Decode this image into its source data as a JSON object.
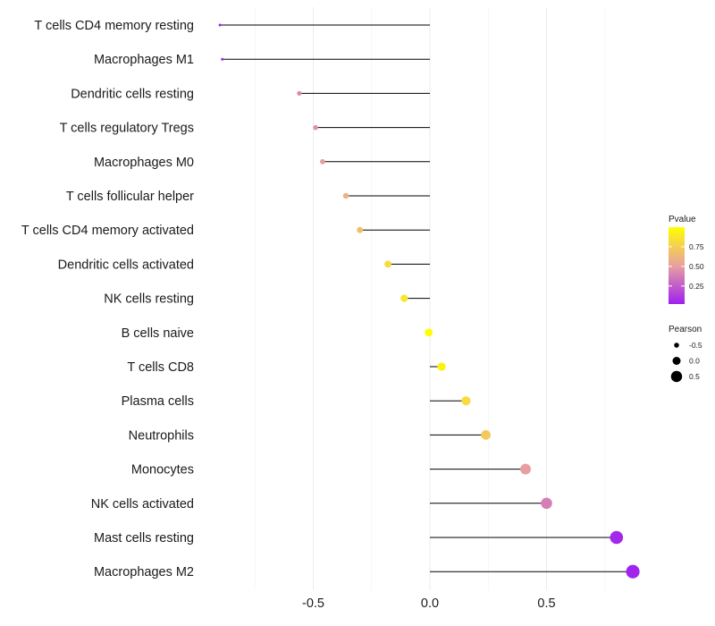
{
  "chart_data": {
    "type": "lollipop",
    "title": "",
    "xlabel": "",
    "ylabel": "",
    "xlim": [
      -0.95,
      0.9
    ],
    "x_ticks": [
      -0.5,
      0.0,
      0.5
    ],
    "x_tick_labels": [
      "-0.5",
      "0.0",
      "0.5"
    ],
    "categories": [
      "T cells CD4 memory resting",
      "Macrophages M1",
      "Dendritic cells resting",
      "T cells regulatory  Tregs ",
      "Macrophages M0",
      "T cells follicular helper",
      "T cells CD4 memory activated",
      "Dendritic cells activated",
      "NK cells resting",
      "B cells naive",
      "T cells CD8",
      "Plasma cells",
      "Neutrophils",
      "Monocytes",
      "NK cells activated",
      "Mast cells resting",
      "Macrophages M2"
    ],
    "values": [
      -0.9,
      -0.89,
      -0.56,
      -0.49,
      -0.46,
      -0.36,
      -0.3,
      -0.18,
      -0.11,
      -0.005,
      0.05,
      0.155,
      0.24,
      0.41,
      0.5,
      0.8,
      0.87
    ],
    "pvalues": [
      0.02,
      0.03,
      0.42,
      0.45,
      0.5,
      0.6,
      0.68,
      0.82,
      0.88,
      0.99,
      0.93,
      0.82,
      0.72,
      0.5,
      0.38,
      0.05,
      0.03
    ],
    "legend": {
      "color": {
        "title": "Pvalue",
        "ticks": [
          0.25,
          0.5,
          0.75
        ],
        "tick_labels": [
          "0.25",
          "0.50",
          "0.75"
        ],
        "range": [
          0.02,
          1.0
        ],
        "low_color": "#a020f0",
        "mid_color": "#e8a0a0",
        "high_color": "#ffff00"
      },
      "size": {
        "title": "Pearson",
        "values": [
          -0.5,
          0.0,
          0.5
        ],
        "labels": [
          "-0.5",
          "0.0",
          "0.5"
        ]
      },
      "placement": "right"
    },
    "grid": true
  }
}
